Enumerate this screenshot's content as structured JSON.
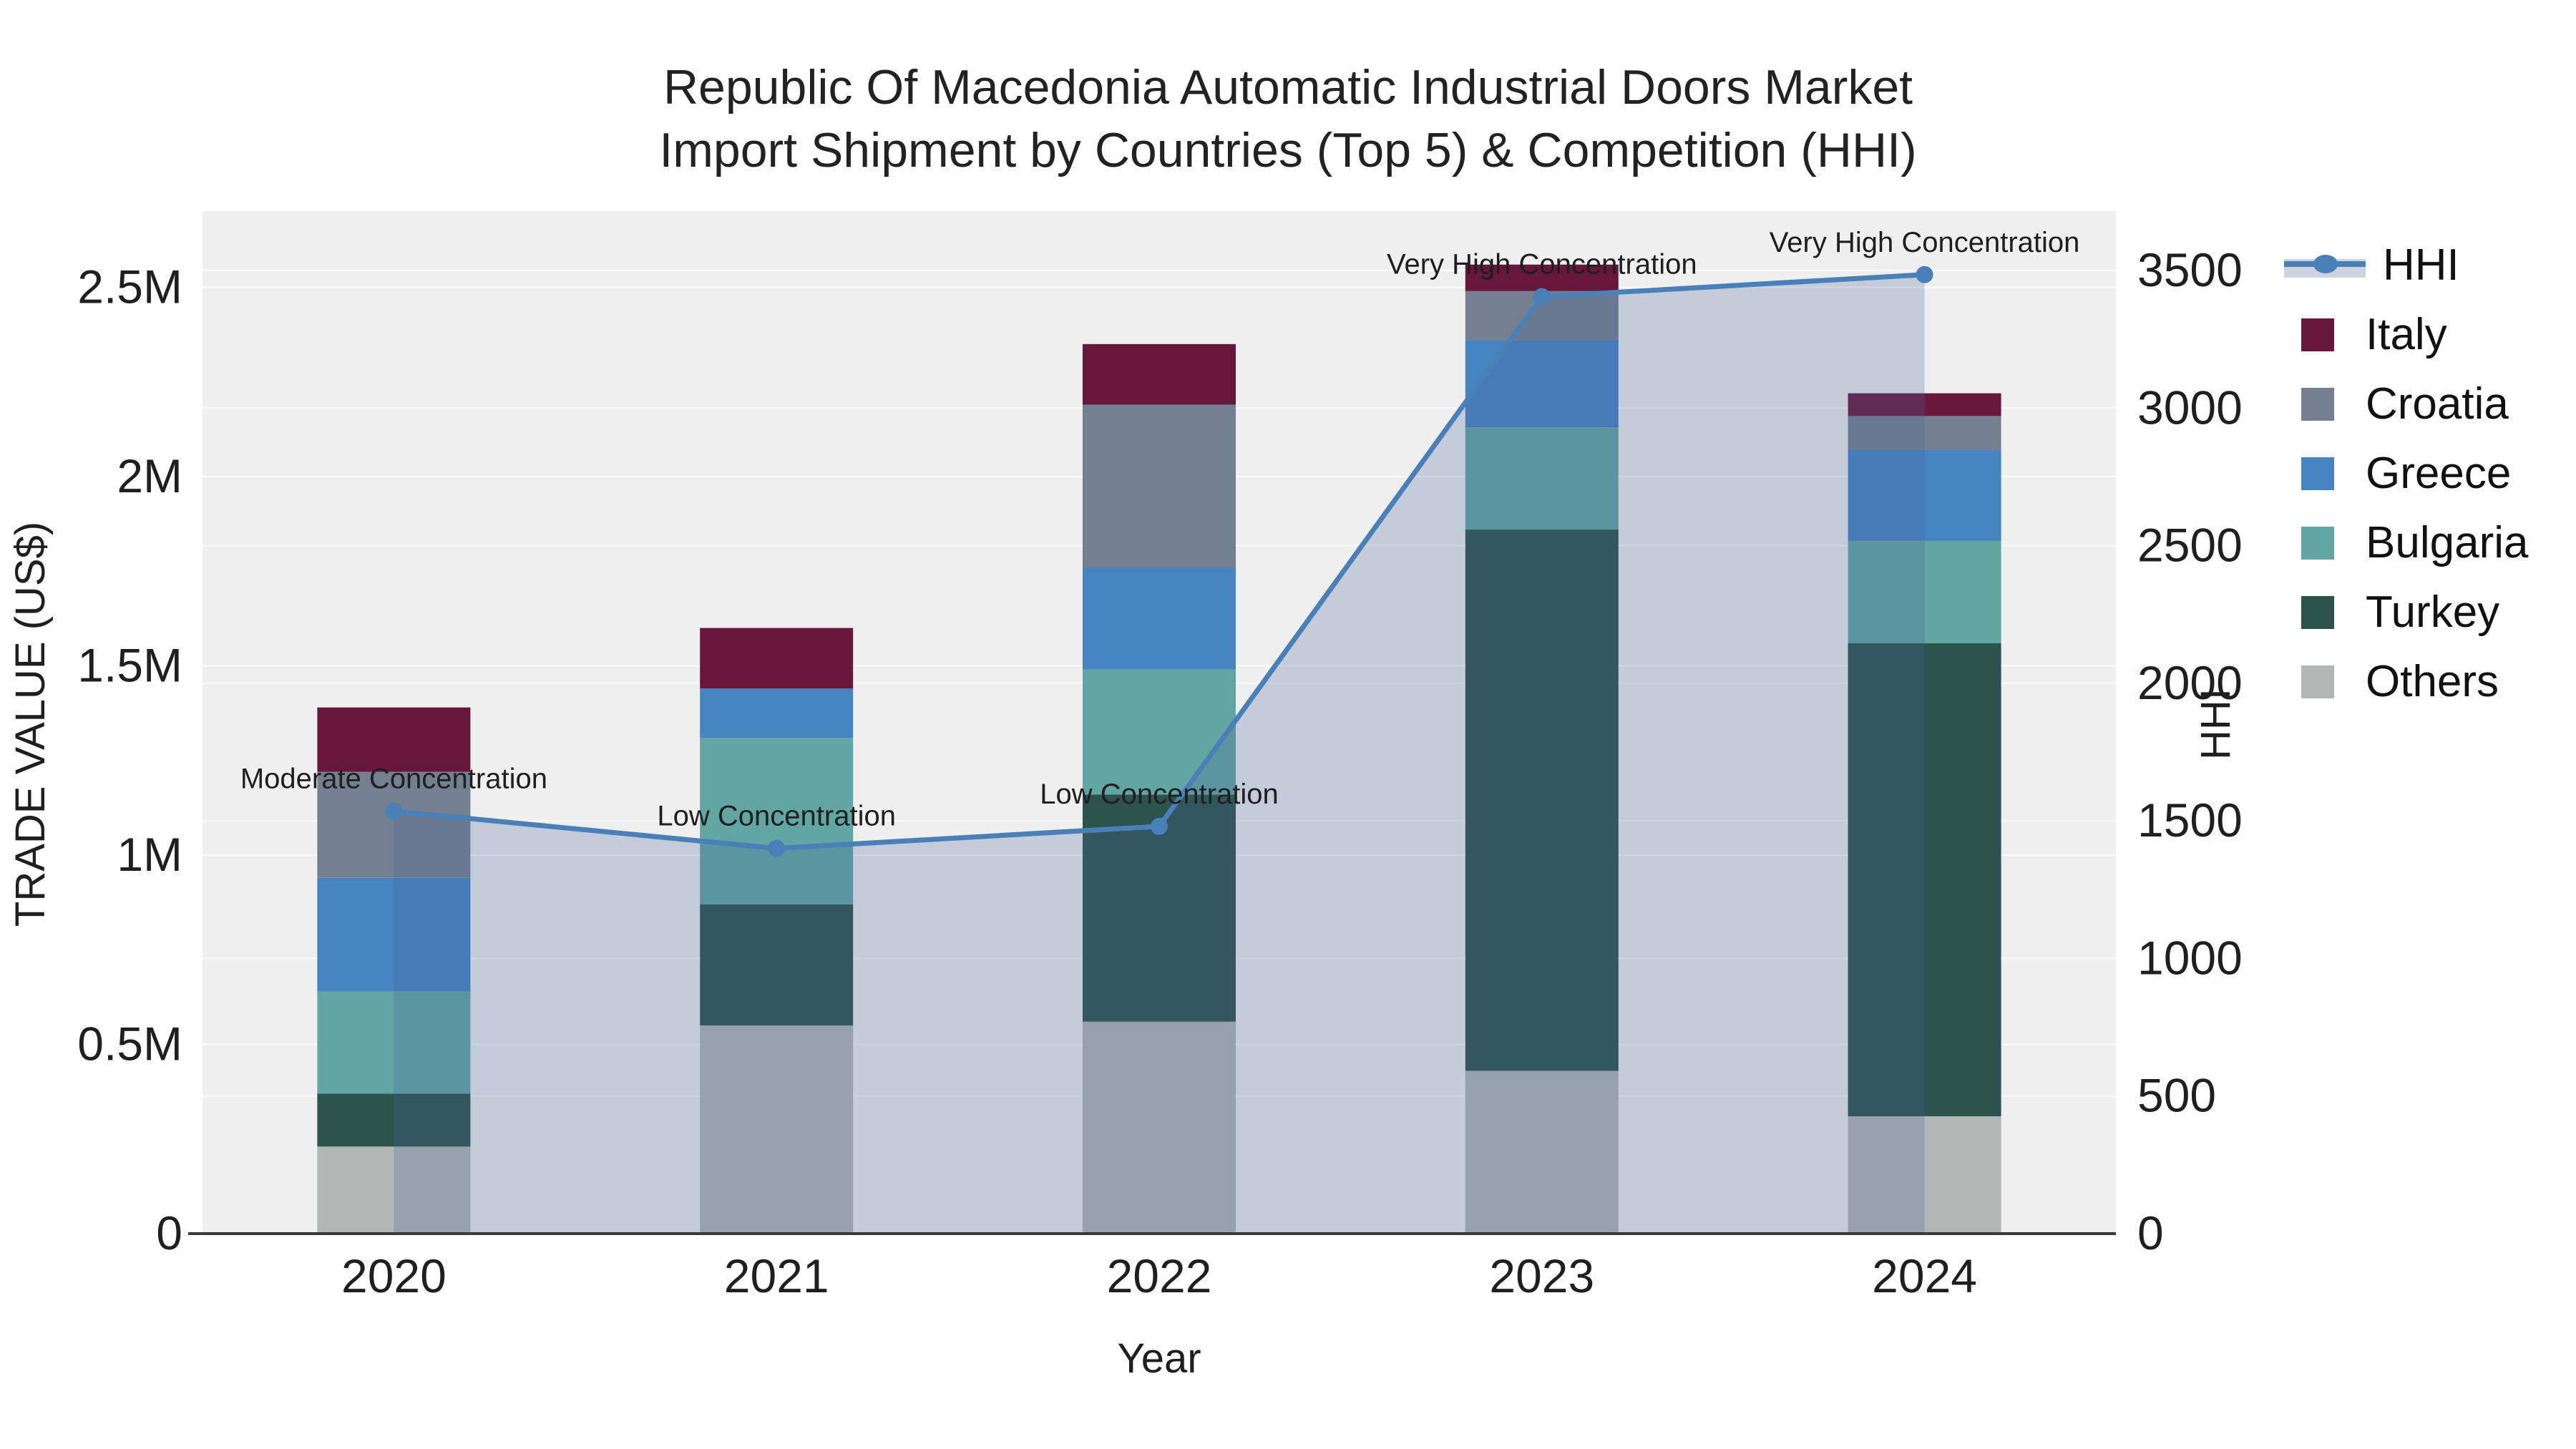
{
  "title": {
    "line1": "Republic Of Macedonia Automatic Industrial Doors Market",
    "line2": "Import Shipment by Countries (Top 5) & Competition (HHI)"
  },
  "chart_data": {
    "type": "bar+line (stacked bars, dual y-axis)",
    "categories": [
      "2020",
      "2021",
      "2022",
      "2023",
      "2024"
    ],
    "values_unit": "millions USD",
    "series": [
      {
        "name": "Others",
        "color": "#B2B6B5",
        "values": [
          0.23,
          0.55,
          0.56,
          0.43,
          0.31
        ]
      },
      {
        "name": "Turkey",
        "color": "#2C534C",
        "values": [
          0.14,
          0.32,
          0.6,
          1.43,
          1.25
        ]
      },
      {
        "name": "Bulgaria",
        "color": "#61A6A3",
        "values": [
          0.27,
          0.44,
          0.33,
          0.27,
          0.27
        ]
      },
      {
        "name": "Greece",
        "color": "#4583C1",
        "values": [
          0.3,
          0.13,
          0.27,
          0.23,
          0.24
        ]
      },
      {
        "name": "Croatia",
        "color": "#74808F",
        "values": [
          0.28,
          0.0,
          0.43,
          0.13,
          0.09
        ]
      },
      {
        "name": "Italy",
        "color": "#67173C",
        "values": [
          0.17,
          0.16,
          0.16,
          0.07,
          0.06
        ]
      }
    ],
    "line": {
      "name": "HHI",
      "color": "#4A80B8",
      "area_fill": "rgba(70,100,150,0.25)",
      "values": [
        1535,
        1400,
        1480,
        3405,
        3485
      ]
    },
    "annotations": [
      {
        "year": "2020",
        "text": "Moderate Concentration"
      },
      {
        "year": "2021",
        "text": "Low Concentration"
      },
      {
        "year": "2022",
        "text": "Low Concentration"
      },
      {
        "year": "2023",
        "text": "Very High Concentration"
      },
      {
        "year": "2024",
        "text": "Very High Concentration"
      }
    ],
    "xlabel": "Year",
    "ylabel_left": "TRADE VALUE (US$)",
    "ylabel_right": "HHI",
    "yticks_left": [
      "0",
      "0.5M",
      "1M",
      "1.5M",
      "2M",
      "2.5M"
    ],
    "yticks_left_values": [
      0,
      0.5,
      1,
      1.5,
      2,
      2.5
    ],
    "yticks_right": [
      "0",
      "500",
      "1000",
      "1500",
      "2000",
      "2500",
      "3000",
      "3500"
    ],
    "yticks_right_values": [
      0,
      500,
      1000,
      1500,
      2000,
      2500,
      3000,
      3500
    ],
    "ylim_left_millions": [
      0,
      2.7
    ],
    "ylim_right": [
      0,
      3716
    ],
    "grid": true,
    "legend_position": "right",
    "legend_order": [
      "HHI",
      "Italy",
      "Croatia",
      "Greece",
      "Bulgaria",
      "Turkey",
      "Others"
    ],
    "plot_bg": "#EFEFEF",
    "grid_color": "#FFFFFF"
  }
}
